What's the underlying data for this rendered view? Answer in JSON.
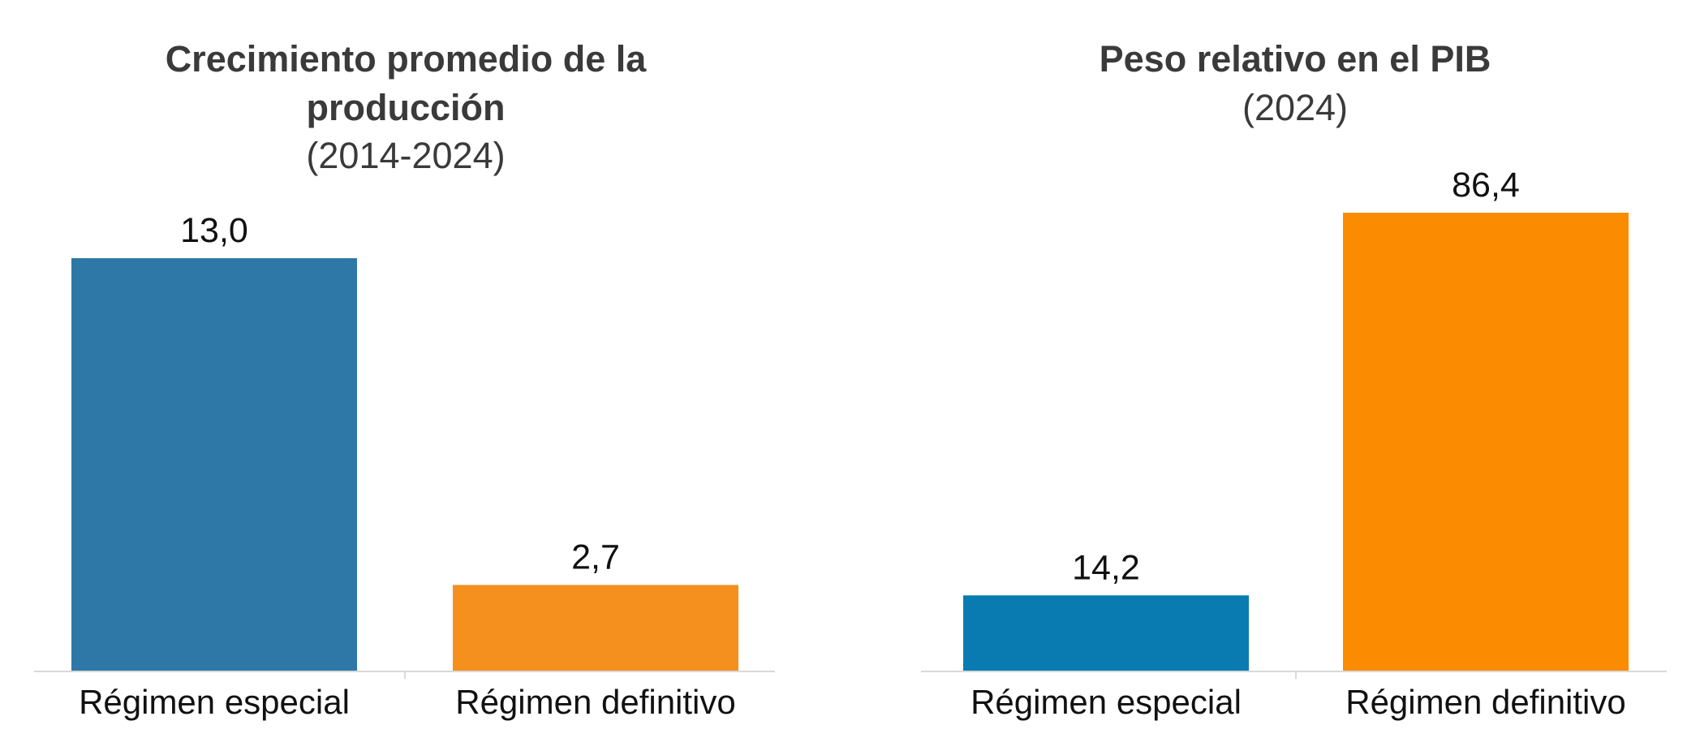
{
  "chart_data": [
    {
      "type": "bar",
      "title": "Crecimiento promedio de la producción",
      "title_lines": [
        "Crecimiento promedio de la",
        "producción"
      ],
      "subtitle": "(2014-2024)",
      "categories": [
        "Régimen especial",
        "Régimen definitivo"
      ],
      "values": [
        13.0,
        2.7
      ],
      "value_labels": [
        "13,0",
        "2,7"
      ],
      "colors": [
        "#2e78a8",
        "#f5901e"
      ],
      "ylim": [
        0,
        13.0
      ],
      "grid": false,
      "legend": "none"
    },
    {
      "type": "bar",
      "title": "Peso relativo en el PIB",
      "title_lines": [
        "Peso relativo en el PIB"
      ],
      "subtitle": "(2024)",
      "categories": [
        "Régimen especial",
        "Régimen definitivo"
      ],
      "values": [
        14.2,
        86.4
      ],
      "value_labels": [
        "14,2",
        "86,4"
      ],
      "colors": [
        "#0a7bb1",
        "#fb8b00"
      ],
      "ylim": [
        0,
        86.4
      ],
      "grid": false,
      "legend": "none"
    }
  ]
}
